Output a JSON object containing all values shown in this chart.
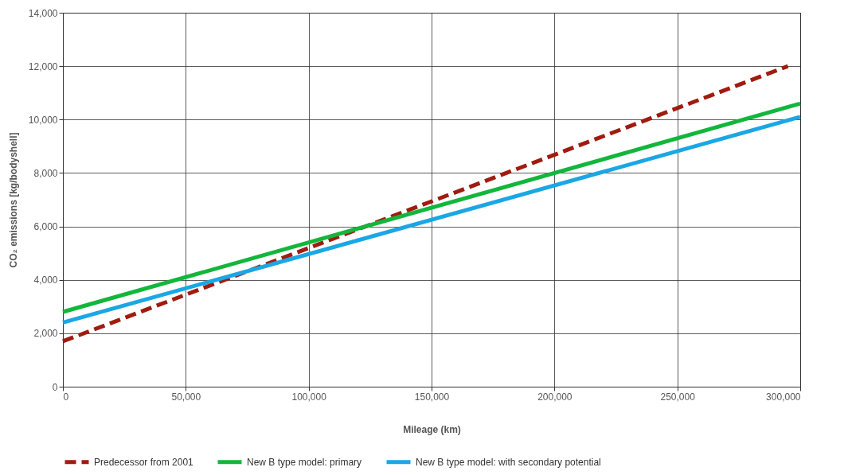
{
  "chart_data": {
    "type": "line",
    "xlabel": "Mileage (km)",
    "ylabel": "CO₂ emissions [kg/bodyshell]",
    "x": [
      0,
      300000
    ],
    "series": [
      {
        "name": "Predecessor from 2001",
        "color": "#a01c10",
        "line_style": "dashed",
        "x": [
          0,
          295000
        ],
        "values": [
          1700,
          12000
        ]
      },
      {
        "name": "New B type model: primary",
        "color": "#13b63c",
        "line_style": "solid",
        "values": [
          2800,
          10600
        ]
      },
      {
        "name": "New B type model: with secondary potential",
        "color": "#1aa7e4",
        "line_style": "solid",
        "values": [
          2400,
          10100
        ]
      }
    ],
    "xlim": [
      0,
      300000
    ],
    "xticks": [
      0,
      {
        "value": 50000,
        "label": "50,000"
      },
      {
        "value": 100000,
        "label": "100,000"
      },
      {
        "value": 150000,
        "label": "150,000"
      },
      {
        "value": 200000,
        "label": "200,000"
      },
      {
        "value": 250000,
        "label": "250,000"
      },
      {
        "value": 300000,
        "label": "300,000"
      }
    ],
    "ylim": [
      0,
      14000
    ],
    "yticks": [
      0,
      {
        "value": 2000,
        "label": "2,000"
      },
      {
        "value": 4000,
        "label": "4,000"
      },
      {
        "value": 6000,
        "label": "6,000"
      },
      {
        "value": 8000,
        "label": "8,000"
      },
      {
        "value": 10000,
        "label": "10,000"
      },
      {
        "value": 12000,
        "label": "12,000"
      },
      {
        "value": 14000,
        "label": "14,000"
      }
    ],
    "grid": true,
    "legend": "bottom"
  }
}
